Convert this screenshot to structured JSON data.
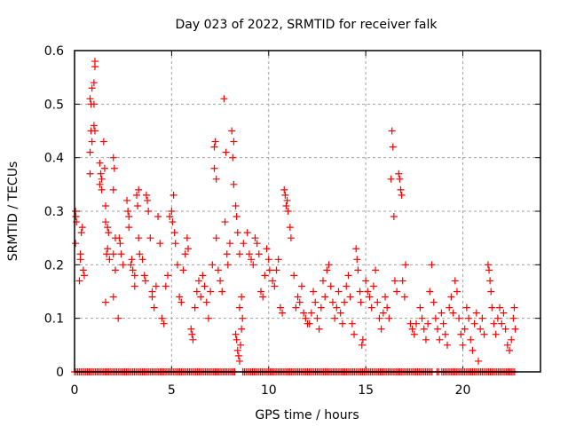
{
  "chart_data": {
    "type": "scatter",
    "title": "Day 023 of 2022, SRMTID for receiver falk",
    "xlabel": "GPS time / hours",
    "ylabel": "SRMTID / TECUs",
    "xlim": [
      0,
      24
    ],
    "ylim": [
      0,
      0.6
    ],
    "xticks": [
      0,
      5,
      10,
      15,
      20
    ],
    "xtick_labels": [
      "0",
      "5",
      "10",
      "15",
      "20"
    ],
    "yticks": [
      0,
      0.1,
      0.2,
      0.3,
      0.4,
      0.5,
      0.6
    ],
    "ytick_labels": [
      "0",
      "0.1",
      "0.2",
      "0.3",
      "0.4",
      "0.5",
      "0.6"
    ],
    "grid": true,
    "legend": "none",
    "marker": "plus",
    "color": "#ff0000",
    "series": [
      {
        "name": "SRMTID",
        "points": [
          [
            0.05,
            0.3
          ],
          [
            0.07,
            0.29
          ],
          [
            0.1,
            0.28
          ],
          [
            0.05,
            0.24
          ],
          [
            0.3,
            0.21
          ],
          [
            0.3,
            0.22
          ],
          [
            0.4,
            0.27
          ],
          [
            0.35,
            0.26
          ],
          [
            0.45,
            0.19
          ],
          [
            0.5,
            0.18
          ],
          [
            0.25,
            0.17
          ],
          [
            0.8,
            0.37
          ],
          [
            0.8,
            0.41
          ],
          [
            0.85,
            0.45
          ],
          [
            0.9,
            0.43
          ],
          [
            0.85,
            0.5
          ],
          [
            0.8,
            0.51
          ],
          [
            0.9,
            0.53
          ],
          [
            1.0,
            0.54
          ],
          [
            1.05,
            0.58
          ],
          [
            1.05,
            0.57
          ],
          [
            1.0,
            0.5
          ],
          [
            1.05,
            0.45
          ],
          [
            1.0,
            0.46
          ],
          [
            1.3,
            0.39
          ],
          [
            1.35,
            0.37
          ],
          [
            1.3,
            0.35
          ],
          [
            1.4,
            0.34
          ],
          [
            1.5,
            0.43
          ],
          [
            1.55,
            0.38
          ],
          [
            1.4,
            0.36
          ],
          [
            1.6,
            0.31
          ],
          [
            1.6,
            0.28
          ],
          [
            1.7,
            0.27
          ],
          [
            1.75,
            0.26
          ],
          [
            1.7,
            0.23
          ],
          [
            1.6,
            0.13
          ],
          [
            1.8,
            0.21
          ],
          [
            1.65,
            0.22
          ],
          [
            2.0,
            0.4
          ],
          [
            2.05,
            0.38
          ],
          [
            2.0,
            0.34
          ],
          [
            2.1,
            0.25
          ],
          [
            2.0,
            0.22
          ],
          [
            2.1,
            0.19
          ],
          [
            2.0,
            0.14
          ],
          [
            2.3,
            0.25
          ],
          [
            2.35,
            0.24
          ],
          [
            2.4,
            0.22
          ],
          [
            2.25,
            0.1
          ],
          [
            2.5,
            0.2
          ],
          [
            2.7,
            0.32
          ],
          [
            2.75,
            0.3
          ],
          [
            2.8,
            0.29
          ],
          [
            2.8,
            0.27
          ],
          [
            2.9,
            0.2
          ],
          [
            3.0,
            0.19
          ],
          [
            2.95,
            0.21
          ],
          [
            3.1,
            0.18
          ],
          [
            3.1,
            0.16
          ],
          [
            3.2,
            0.33
          ],
          [
            3.3,
            0.34
          ],
          [
            3.25,
            0.31
          ],
          [
            3.3,
            0.25
          ],
          [
            3.35,
            0.22
          ],
          [
            3.5,
            0.21
          ],
          [
            3.6,
            0.18
          ],
          [
            3.65,
            0.17
          ],
          [
            3.7,
            0.33
          ],
          [
            3.75,
            0.32
          ],
          [
            3.8,
            0.3
          ],
          [
            3.9,
            0.25
          ],
          [
            4.0,
            0.15
          ],
          [
            4.0,
            0.14
          ],
          [
            4.1,
            0.12
          ],
          [
            4.2,
            0.16
          ],
          [
            4.3,
            0.29
          ],
          [
            4.4,
            0.24
          ],
          [
            4.5,
            0.1
          ],
          [
            4.6,
            0.09
          ],
          [
            4.7,
            0.16
          ],
          [
            4.8,
            0.18
          ],
          [
            4.9,
            0.29
          ],
          [
            5.0,
            0.3
          ],
          [
            5.05,
            0.28
          ],
          [
            5.1,
            0.33
          ],
          [
            5.15,
            0.26
          ],
          [
            5.2,
            0.24
          ],
          [
            5.3,
            0.2
          ],
          [
            5.4,
            0.14
          ],
          [
            5.5,
            0.13
          ],
          [
            5.6,
            0.19
          ],
          [
            5.7,
            0.22
          ],
          [
            5.8,
            0.25
          ],
          [
            5.85,
            0.23
          ],
          [
            6.0,
            0.08
          ],
          [
            6.05,
            0.07
          ],
          [
            6.1,
            0.06
          ],
          [
            6.2,
            0.12
          ],
          [
            6.3,
            0.15
          ],
          [
            6.4,
            0.17
          ],
          [
            6.5,
            0.14
          ],
          [
            6.6,
            0.18
          ],
          [
            6.7,
            0.16
          ],
          [
            6.8,
            0.13
          ],
          [
            6.9,
            0.1
          ],
          [
            7.0,
            0.15
          ],
          [
            7.1,
            0.2
          ],
          [
            7.2,
            0.42
          ],
          [
            7.25,
            0.43
          ],
          [
            7.2,
            0.38
          ],
          [
            7.3,
            0.36
          ],
          [
            7.3,
            0.25
          ],
          [
            7.4,
            0.19
          ],
          [
            7.5,
            0.17
          ],
          [
            7.6,
            0.15
          ],
          [
            7.7,
            0.51
          ],
          [
            7.8,
            0.41
          ],
          [
            7.75,
            0.28
          ],
          [
            7.85,
            0.22
          ],
          [
            7.9,
            0.2
          ],
          [
            8.0,
            0.24
          ],
          [
            8.1,
            0.45
          ],
          [
            8.15,
            0.4
          ],
          [
            8.2,
            0.43
          ],
          [
            8.2,
            0.35
          ],
          [
            8.3,
            0.31
          ],
          [
            8.35,
            0.29
          ],
          [
            8.4,
            0.26
          ],
          [
            8.5,
            0.22
          ],
          [
            8.3,
            0.07
          ],
          [
            8.35,
            0.06
          ],
          [
            8.4,
            0.04
          ],
          [
            8.45,
            0.03
          ],
          [
            8.5,
            0.02
          ],
          [
            8.55,
            0.05
          ],
          [
            8.6,
            0.08
          ],
          [
            8.5,
            0.12
          ],
          [
            8.6,
            0.14
          ],
          [
            8.65,
            0.1
          ],
          [
            8.7,
            0.24
          ],
          [
            8.9,
            0.26
          ],
          [
            9.0,
            0.22
          ],
          [
            9.1,
            0.21
          ],
          [
            9.2,
            0.2
          ],
          [
            9.3,
            0.25
          ],
          [
            9.4,
            0.24
          ],
          [
            9.5,
            0.22
          ],
          [
            9.6,
            0.15
          ],
          [
            9.7,
            0.14
          ],
          [
            9.8,
            0.18
          ],
          [
            9.9,
            0.23
          ],
          [
            10.0,
            0.21
          ],
          [
            10.05,
            0.19
          ],
          [
            10.2,
            0.17
          ],
          [
            10.3,
            0.16
          ],
          [
            10.4,
            0.19
          ],
          [
            10.5,
            0.21
          ],
          [
            10.6,
            0.12
          ],
          [
            10.7,
            0.11
          ],
          [
            10.8,
            0.34
          ],
          [
            10.85,
            0.33
          ],
          [
            10.9,
            0.31
          ],
          [
            10.95,
            0.32
          ],
          [
            11.0,
            0.3
          ],
          [
            11.1,
            0.27
          ],
          [
            11.15,
            0.25
          ],
          [
            11.3,
            0.18
          ],
          [
            11.4,
            0.12
          ],
          [
            11.5,
            0.14
          ],
          [
            11.6,
            0.13
          ],
          [
            11.7,
            0.16
          ],
          [
            11.8,
            0.11
          ],
          [
            11.9,
            0.1
          ],
          [
            12.0,
            0.09
          ],
          [
            12.1,
            0.09
          ],
          [
            12.2,
            0.11
          ],
          [
            12.3,
            0.15
          ],
          [
            12.4,
            0.13
          ],
          [
            12.5,
            0.1
          ],
          [
            12.6,
            0.08
          ],
          [
            12.7,
            0.12
          ],
          [
            12.8,
            0.17
          ],
          [
            12.9,
            0.14
          ],
          [
            13.0,
            0.19
          ],
          [
            13.1,
            0.2
          ],
          [
            13.2,
            0.16
          ],
          [
            13.3,
            0.13
          ],
          [
            13.4,
            0.1
          ],
          [
            13.5,
            0.12
          ],
          [
            13.6,
            0.15
          ],
          [
            13.7,
            0.11
          ],
          [
            13.8,
            0.09
          ],
          [
            13.9,
            0.13
          ],
          [
            14.0,
            0.16
          ],
          [
            14.1,
            0.18
          ],
          [
            14.2,
            0.14
          ],
          [
            14.3,
            0.09
          ],
          [
            14.4,
            0.07
          ],
          [
            14.5,
            0.23
          ],
          [
            14.55,
            0.21
          ],
          [
            14.6,
            0.19
          ],
          [
            14.7,
            0.15
          ],
          [
            14.75,
            0.13
          ],
          [
            14.8,
            0.05
          ],
          [
            14.85,
            0.06
          ],
          [
            15.0,
            0.17
          ],
          [
            15.1,
            0.15
          ],
          [
            15.2,
            0.14
          ],
          [
            15.3,
            0.12
          ],
          [
            15.4,
            0.16
          ],
          [
            15.5,
            0.19
          ],
          [
            15.6,
            0.13
          ],
          [
            15.7,
            0.1
          ],
          [
            15.8,
            0.08
          ],
          [
            15.9,
            0.11
          ],
          [
            16.0,
            0.14
          ],
          [
            16.1,
            0.12
          ],
          [
            16.2,
            0.1
          ],
          [
            16.3,
            0.36
          ],
          [
            16.35,
            0.45
          ],
          [
            16.4,
            0.42
          ],
          [
            16.45,
            0.29
          ],
          [
            16.5,
            0.17
          ],
          [
            16.6,
            0.15
          ],
          [
            16.7,
            0.37
          ],
          [
            16.75,
            0.36
          ],
          [
            16.8,
            0.34
          ],
          [
            16.85,
            0.33
          ],
          [
            16.9,
            0.17
          ],
          [
            17.0,
            0.14
          ],
          [
            17.05,
            0.2
          ],
          [
            17.3,
            0.09
          ],
          [
            17.4,
            0.08
          ],
          [
            17.5,
            0.07
          ],
          [
            17.6,
            0.09
          ],
          [
            17.8,
            0.12
          ],
          [
            17.9,
            0.1
          ],
          [
            18.0,
            0.08
          ],
          [
            18.1,
            0.06
          ],
          [
            18.2,
            0.09
          ],
          [
            18.3,
            0.15
          ],
          [
            18.4,
            0.2
          ],
          [
            18.5,
            0.13
          ],
          [
            18.6,
            0.1
          ],
          [
            18.7,
            0.08
          ],
          [
            18.8,
            0.06
          ],
          [
            18.9,
            0.11
          ],
          [
            19.0,
            0.09
          ],
          [
            19.1,
            0.07
          ],
          [
            19.2,
            0.05
          ],
          [
            19.3,
            0.12
          ],
          [
            19.4,
            0.14
          ],
          [
            19.5,
            0.11
          ],
          [
            19.6,
            0.17
          ],
          [
            19.7,
            0.15
          ],
          [
            19.8,
            0.1
          ],
          [
            19.9,
            0.07
          ],
          [
            20.0,
            0.05
          ],
          [
            20.1,
            0.08
          ],
          [
            20.2,
            0.12
          ],
          [
            20.3,
            0.1
          ],
          [
            20.4,
            0.06
          ],
          [
            20.5,
            0.04
          ],
          [
            20.6,
            0.09
          ],
          [
            20.7,
            0.11
          ],
          [
            20.8,
            0.02
          ],
          [
            20.9,
            0.08
          ],
          [
            21.0,
            0.1
          ],
          [
            21.1,
            0.07
          ],
          [
            21.3,
            0.2
          ],
          [
            21.35,
            0.19
          ],
          [
            21.4,
            0.17
          ],
          [
            21.45,
            0.15
          ],
          [
            21.5,
            0.12
          ],
          [
            21.6,
            0.09
          ],
          [
            21.7,
            0.07
          ],
          [
            21.8,
            0.1
          ],
          [
            21.9,
            0.12
          ],
          [
            22.0,
            0.09
          ],
          [
            22.1,
            0.11
          ],
          [
            22.2,
            0.08
          ],
          [
            22.3,
            0.05
          ],
          [
            22.4,
            0.04
          ],
          [
            22.5,
            0.06
          ],
          [
            22.6,
            0.1
          ],
          [
            22.65,
            0.12
          ],
          [
            22.7,
            0.08
          ]
        ],
        "zero_value_hours_range": [
          0,
          22.7
        ],
        "zero_value_gaps_hours": [
          [
            8.3,
            8.65
          ],
          [
            18.45,
            18.6
          ],
          [
            18.8,
            18.9
          ]
        ]
      }
    ]
  }
}
